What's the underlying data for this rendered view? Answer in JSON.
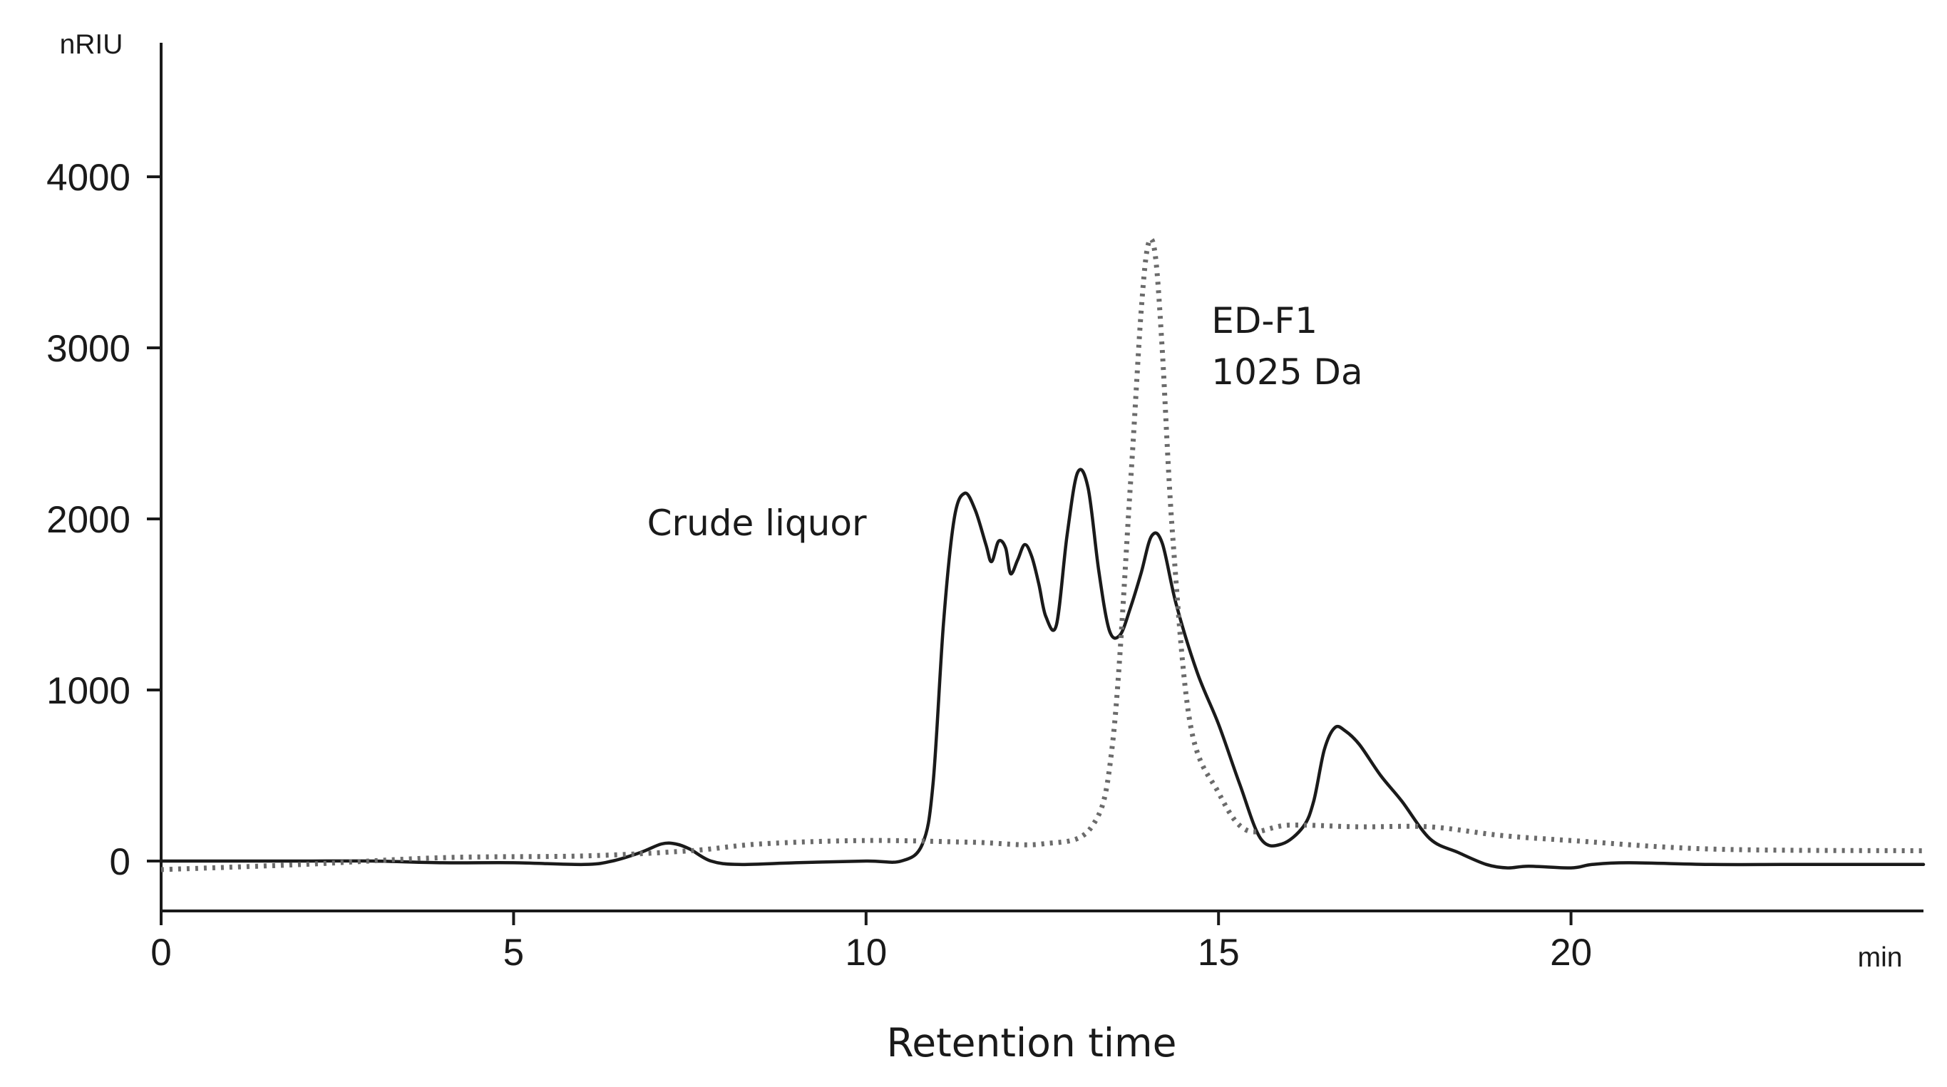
{
  "chart_data": {
    "type": "line",
    "xlabel": "Retention time",
    "x_unit": "min",
    "ylabel": "nRIU",
    "xlim": [
      0,
      25
    ],
    "ylim": [
      -300,
      4800
    ],
    "x_ticks": [
      0,
      5,
      10,
      15,
      20
    ],
    "y_ticks": [
      0,
      1000,
      2000,
      3000,
      4000
    ],
    "grid": false,
    "legend": "none",
    "annotations": [
      {
        "text": "Crude liquor",
        "x": 7.5,
        "y": 1980
      },
      {
        "text": "ED-F1",
        "x": 14.9,
        "y": 3100
      },
      {
        "text": "1025 Da",
        "x": 14.9,
        "y": 2780
      }
    ],
    "series": [
      {
        "style": "solid",
        "x": [
          0,
          1,
          2,
          3,
          4,
          5,
          6,
          6.4,
          6.8,
          7.1,
          7.3,
          7.5,
          7.8,
          8.2,
          9,
          10,
          10.5,
          10.8,
          10.95,
          11.1,
          11.25,
          11.4,
          11.55,
          11.7,
          11.78,
          11.88,
          11.98,
          12.05,
          12.15,
          12.25,
          12.35,
          12.45,
          12.55,
          12.7,
          12.85,
          13.0,
          13.15,
          13.3,
          13.45,
          13.6,
          13.75,
          13.9,
          14.05,
          14.2,
          14.4,
          14.7,
          15.0,
          15.3,
          15.6,
          15.9,
          16.2,
          16.35,
          16.5,
          16.65,
          16.8,
          17.0,
          17.3,
          17.6,
          18.0,
          18.4,
          18.8,
          19.1,
          19.4,
          20.0,
          20.3,
          20.8,
          22,
          23,
          24,
          25
        ],
        "y": [
          0,
          0,
          0,
          0,
          -10,
          -10,
          -20,
          0,
          50,
          100,
          100,
          70,
          0,
          -20,
          -10,
          0,
          0,
          100,
          450,
          1400,
          2000,
          2150,
          2050,
          1850,
          1750,
          1870,
          1830,
          1680,
          1760,
          1850,
          1780,
          1620,
          1430,
          1380,
          1900,
          2270,
          2180,
          1700,
          1350,
          1320,
          1480,
          1680,
          1900,
          1860,
          1500,
          1100,
          800,
          450,
          130,
          100,
          200,
          350,
          650,
          780,
          760,
          680,
          500,
          350,
          130,
          50,
          -20,
          -40,
          -30,
          -40,
          -20,
          -10,
          -20,
          -20,
          -20,
          -20
        ]
      },
      {
        "style": "dotted",
        "x": [
          0,
          2,
          4,
          6,
          7.5,
          8.5,
          10,
          11.5,
          12.5,
          13.2,
          13.5,
          13.75,
          13.9,
          14.0,
          14.1,
          14.2,
          14.35,
          14.6,
          15.0,
          15.4,
          16,
          17,
          18,
          19,
          20,
          22,
          25
        ],
        "y": [
          -50,
          -20,
          20,
          30,
          60,
          100,
          120,
          110,
          100,
          200,
          700,
          2200,
          3200,
          3600,
          3550,
          3000,
          1900,
          800,
          400,
          180,
          210,
          200,
          200,
          150,
          120,
          70,
          60
        ]
      }
    ]
  }
}
